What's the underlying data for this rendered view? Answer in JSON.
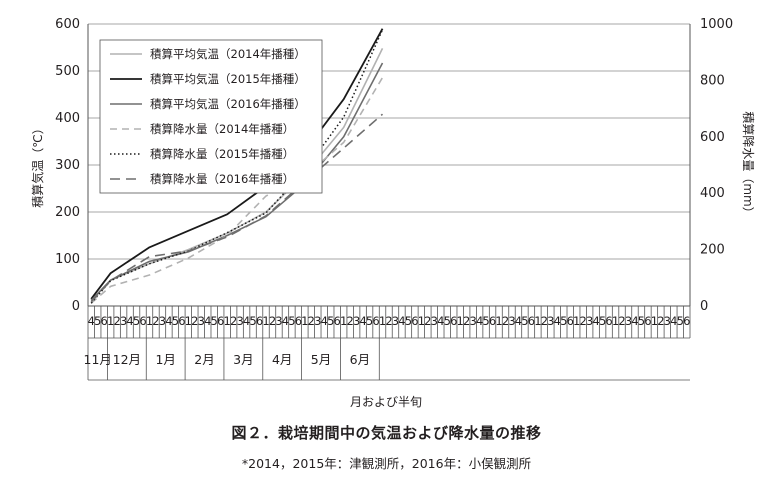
{
  "chart_data": {
    "type": "line",
    "title": "",
    "xlabel": "月および半旬",
    "ylabel_left": "積算気温（℃）",
    "ylabel_right": "積算降水量（mm）",
    "ylim_left": [
      0,
      600
    ],
    "ylim_right": [
      0,
      1000
    ],
    "yticks_left": [
      "0",
      "100",
      "200",
      "300",
      "400",
      "500",
      "600"
    ],
    "yticks_right": [
      "0",
      "200",
      "400",
      "600",
      "800",
      "1000"
    ],
    "grid": "horizontal",
    "legend_position": "top-left",
    "x_ticks": [
      "4",
      "5",
      "6",
      "1",
      "2",
      "3",
      "4",
      "5",
      "6",
      "1",
      "2",
      "3",
      "4",
      "5",
      "6",
      "1",
      "2",
      "3",
      "4",
      "5",
      "6",
      "1",
      "2",
      "3",
      "4",
      "5",
      "6",
      "1",
      "2",
      "3",
      "4",
      "5",
      "6",
      "1",
      "2",
      "3",
      "4",
      "5",
      "6",
      "1",
      "2",
      "3",
      "4",
      "5",
      "6",
      "1",
      "2",
      "3",
      "4",
      "5",
      "6",
      "1",
      "2",
      "3",
      "4",
      "5",
      "6",
      "1",
      "2",
      "3",
      "4",
      "5",
      "6",
      "1",
      "2",
      "3",
      "4",
      "5",
      "6",
      "1",
      "2",
      "3",
      "4",
      "5",
      "6",
      "1",
      "2",
      "3",
      "4",
      "5",
      "6",
      "1",
      "2",
      "3",
      "4",
      "5",
      "6",
      "1",
      "2",
      "3",
      "4",
      "5",
      "6"
    ],
    "months": [
      "11月",
      "12月",
      "1月",
      "2月",
      "3月",
      "4月",
      "5月",
      "6月"
    ],
    "x": [
      0,
      3,
      9,
      15,
      21,
      27,
      33,
      39,
      45
    ],
    "series": [
      {
        "name": "積算平均気温（2014年播種）",
        "axis": "left",
        "style": "solid-lightgray",
        "values": [
          12,
          55,
          90,
          120,
          155,
          200,
          280,
          380,
          548
        ]
      },
      {
        "name": "積算平均気温（2015年播種）",
        "axis": "left",
        "style": "solid-black",
        "values": [
          15,
          70,
          125,
          160,
          195,
          255,
          330,
          440,
          590
        ]
      },
      {
        "name": "積算平均気温（2016年播種）",
        "axis": "left",
        "style": "solid-gray",
        "values": [
          12,
          55,
          95,
          115,
          150,
          190,
          260,
          360,
          517
        ]
      },
      {
        "name": "積算降水量（2014年播種）",
        "axis": "right",
        "style": "dashed-lightgray",
        "values": [
          10,
          70,
          110,
          170,
          250,
          390,
          460,
          580,
          810
        ]
      },
      {
        "name": "積算降水量（2015年播種）",
        "axis": "right",
        "style": "dotted-black",
        "values": [
          10,
          90,
          150,
          195,
          260,
          330,
          480,
          670,
          980
        ]
      },
      {
        "name": "積算降水量（2016年播種）",
        "axis": "right",
        "style": "dashed-gray",
        "values": [
          15,
          90,
          175,
          195,
          245,
          320,
          440,
          560,
          680
        ]
      }
    ]
  },
  "caption": {
    "title": "図２．栽培期間中の気温および降水量の推移",
    "note": "*2014，2015年：津観測所，2016年：小俣観測所"
  }
}
